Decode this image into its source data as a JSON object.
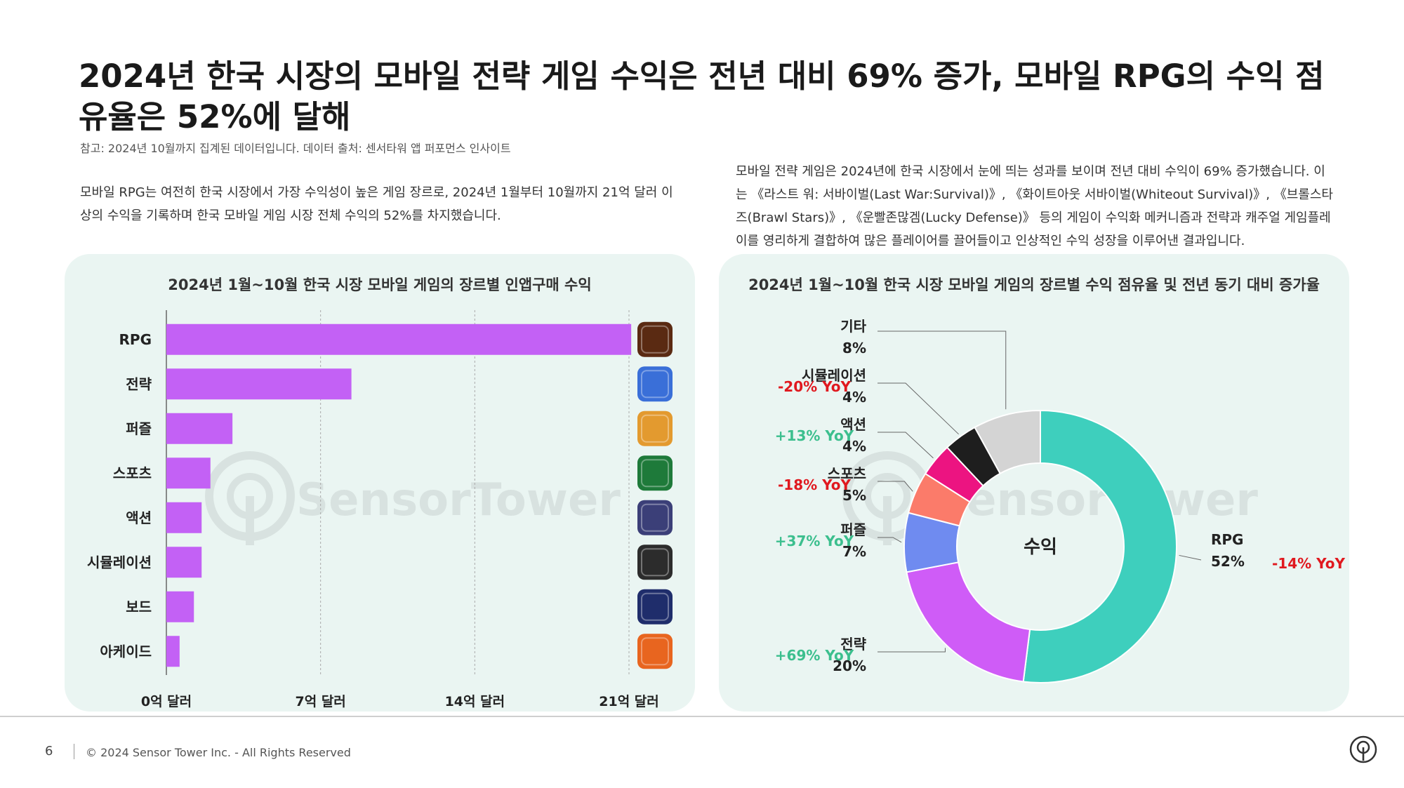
{
  "title": "2024년 한국 시장의 모바일 전략 게임 수익은 전년 대비 69% 증가, 모바일 RPG의 수익 점유율은 52%에 달해",
  "note": "참고: 2024년 10월까지 집계된 데이터입니다. 데이터 출처: 센서타워 앱 퍼포먼스 인사이트",
  "paragraph_left": "모바일 RPG는 여전히 한국 시장에서 가장 수익성이 높은 게임 장르로, 2024년 1월부터 10월까지 21억 달러 이상의 수익을 기록하며 한국 모바일 게임 시장 전체 수익의 52%를 차지했습니다.",
  "paragraph_right": "모바일 전략 게임은 2024년에 한국 시장에서 눈에 띄는 성과를 보이며 전년 대비 수익이 69% 증가했습니다. 이는 《라스트 워: 서바이벌(Last War:Survival)》, 《화이트아웃 서바이벌(Whiteout Survival)》, 《브롤스타즈(Brawl Stars)》, 《운빨존많겜(Lucky Defense)》 등의 게임이 수익화 메커니즘과 전략과 캐주얼 게임플레이를 영리하게 결합하여 많은 플레이어를 끌어들이고 인상적인 수익 성장을 이루어낸 결과입니다.",
  "footer": {
    "page": "6",
    "copyright": "© 2024 Sensor Tower Inc. - All Rights Reserved"
  },
  "watermark": "SensorTower",
  "colors": {
    "bar": "#c361f5",
    "panel": "#eaf5f2",
    "negative": "#e0191f",
    "positive": "#3cbf8e"
  },
  "chart_data": [
    {
      "type": "bar",
      "orientation": "horizontal",
      "title": "2024년 1월~10월 한국 시장 모바일 게임의 장르별 인앱구매 수익",
      "categories": [
        "RPG",
        "전략",
        "퍼즐",
        "스포츠",
        "액션",
        "시뮬레이션",
        "보드",
        "아케이드"
      ],
      "values": [
        21.1,
        8.4,
        3.0,
        2.0,
        1.6,
        1.6,
        1.25,
        0.6
      ],
      "unit": "억 달러",
      "xlim": [
        0,
        21
      ],
      "ticks": [
        0,
        7,
        14,
        21
      ],
      "tick_labels": [
        "0억 달러",
        "7억 달러",
        "14억 달러",
        "21억 달러"
      ],
      "grid": "vertical dashed",
      "icons": [
        "lineage-m-icon",
        "strategy-game-icon",
        "puzzle-game-icon",
        "football-game-icon",
        "action-game-icon",
        "roblox-icon",
        "poker-hangame-icon",
        "cookie-run-icon"
      ]
    },
    {
      "type": "pie",
      "donut": true,
      "title": "2024년 1월~10월 한국 시장 모바일 게임의 장르별 수익 점유율 및 전년 동기 대비 증가율",
      "center_label": "수익",
      "slices": [
        {
          "name": "RPG",
          "share": 52,
          "share_label": "52%",
          "yoy": "-14% YoY",
          "color": "#3ecfbd"
        },
        {
          "name": "전략",
          "share": 20,
          "share_label": "20%",
          "yoy": "+69% YoY",
          "color": "#cf5cf7"
        },
        {
          "name": "퍼즐",
          "share": 7,
          "share_label": "7%",
          "yoy": "+37% YoY",
          "color": "#6f8bf0"
        },
        {
          "name": "스포츠",
          "share": 5,
          "share_label": "5%",
          "yoy": "-18% YoY",
          "color": "#fb7b6a"
        },
        {
          "name": "액션",
          "share": 4,
          "share_label": "4%",
          "yoy": "+13% YoY",
          "color": "#ec1481"
        },
        {
          "name": "시뮬레이션",
          "share": 4,
          "share_label": "4%",
          "yoy": "-20% YoY",
          "color": "#1e1e1e"
        },
        {
          "name": "기타",
          "share": 8,
          "share_label": "8%",
          "yoy": "",
          "color": "#d4d4d4"
        }
      ]
    }
  ]
}
